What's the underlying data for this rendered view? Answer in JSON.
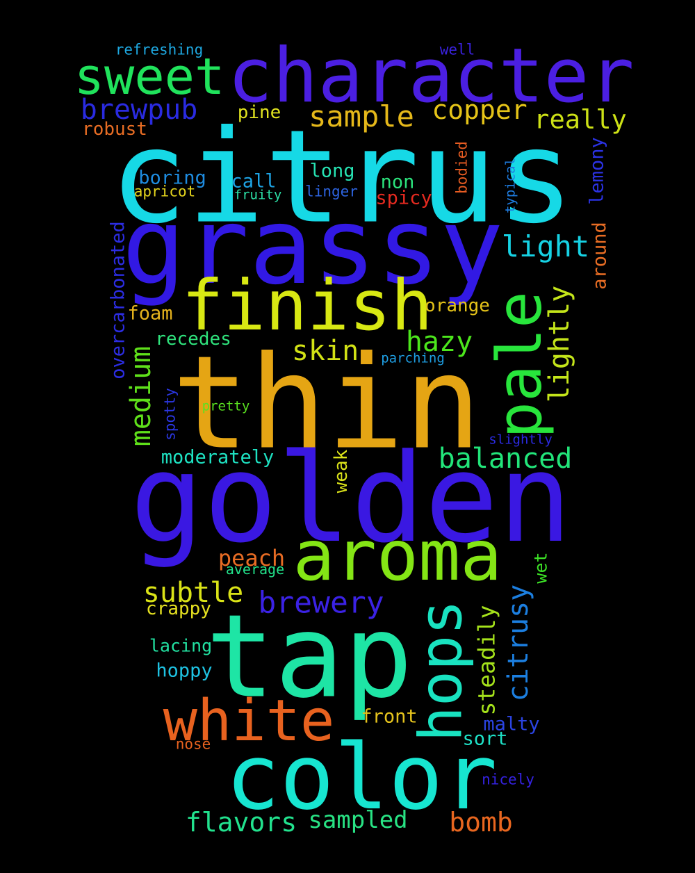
{
  "words": [
    {
      "text": "citrus",
      "color": "#16d9e6"
    },
    {
      "text": "grassy",
      "color": "#3219e4"
    },
    {
      "text": "golden",
      "color": "#3a18e2"
    },
    {
      "text": "thin",
      "color": "#e5a514"
    },
    {
      "text": "tap",
      "color": "#1ee5a5"
    },
    {
      "text": "character",
      "color": "#4b1fe2"
    },
    {
      "text": "color",
      "color": "#17e6d1"
    },
    {
      "text": "aroma",
      "color": "#84e515"
    },
    {
      "text": "finish",
      "color": "#d8e813"
    },
    {
      "text": "white",
      "color": "#e8621f"
    },
    {
      "text": "pale",
      "color": "#28e53c"
    },
    {
      "text": "hops",
      "color": "#19e2c0"
    },
    {
      "text": "sweet",
      "color": "#20e35c"
    },
    {
      "text": "brewpub",
      "color": "#2a2be1"
    },
    {
      "text": "sample",
      "color": "#e5b81a"
    },
    {
      "text": "copper",
      "color": "#e5c418"
    },
    {
      "text": "really",
      "color": "#cde116"
    },
    {
      "text": "light",
      "color": "#16d2e4"
    },
    {
      "text": "lightly",
      "color": "#c4e51a"
    },
    {
      "text": "hazy",
      "color": "#4ce61c"
    },
    {
      "text": "skin",
      "color": "#d2e215"
    },
    {
      "text": "medium",
      "color": "#5fe01a"
    },
    {
      "text": "balanced",
      "color": "#22e57a"
    },
    {
      "text": "brewery",
      "color": "#3b22e5"
    },
    {
      "text": "subtle",
      "color": "#dae317"
    },
    {
      "text": "citrusy",
      "color": "#1c7fe0"
    },
    {
      "text": "steadily",
      "color": "#a5e21b"
    },
    {
      "text": "flavors",
      "color": "#22e28e"
    },
    {
      "text": "sampled",
      "color": "#28e384"
    },
    {
      "text": "bomb",
      "color": "#e8661f"
    },
    {
      "text": "peach",
      "color": "#e86c24"
    },
    {
      "text": "overcarbonated",
      "color": "#2c2de2"
    },
    {
      "text": "moderately",
      "color": "#1ee2c2"
    },
    {
      "text": "long",
      "color": "#26e2b2"
    },
    {
      "text": "non",
      "color": "#2be27c"
    },
    {
      "text": "spicy",
      "color": "#e52a20"
    },
    {
      "text": "boring",
      "color": "#1e8ce0"
    },
    {
      "text": "call",
      "color": "#1ea4e5"
    },
    {
      "text": "pine",
      "color": "#e0e320"
    },
    {
      "text": "robust",
      "color": "#e86d24"
    },
    {
      "text": "refreshing",
      "color": "#1ea9e2"
    },
    {
      "text": "well",
      "color": "#3a22e0"
    },
    {
      "text": "orange",
      "color": "#e5c319"
    },
    {
      "text": "foam",
      "color": "#e5b31d"
    },
    {
      "text": "recedes",
      "color": "#2fe27c"
    },
    {
      "text": "around",
      "color": "#e86d24"
    },
    {
      "text": "lemony",
      "color": "#2b32e2"
    },
    {
      "text": "bodied",
      "color": "#e85c22"
    },
    {
      "text": "typical",
      "color": "#1e7ce0"
    },
    {
      "text": "apricot",
      "color": "#e5d51d"
    },
    {
      "text": "fruity",
      "color": "#2ce2a8"
    },
    {
      "text": "linger",
      "color": "#2d64e0"
    },
    {
      "text": "parching",
      "color": "#1e9ee2"
    },
    {
      "text": "spotty",
      "color": "#2b37e2"
    },
    {
      "text": "pretty",
      "color": "#5ae220"
    },
    {
      "text": "slightly",
      "color": "#2b2be2"
    },
    {
      "text": "weak",
      "color": "#dbe31a"
    },
    {
      "text": "wet",
      "color": "#3ce226"
    },
    {
      "text": "average",
      "color": "#22e28a"
    },
    {
      "text": "crappy",
      "color": "#e5e120"
    },
    {
      "text": "lacing",
      "color": "#22e2a2"
    },
    {
      "text": "hoppy",
      "color": "#1ec2e2"
    },
    {
      "text": "front",
      "color": "#e5c31d"
    },
    {
      "text": "malty",
      "color": "#2b44e2"
    },
    {
      "text": "sort",
      "color": "#1ee2c8"
    },
    {
      "text": "nose",
      "color": "#e8621f"
    },
    {
      "text": "nicely",
      "color": "#3522e2"
    }
  ]
}
